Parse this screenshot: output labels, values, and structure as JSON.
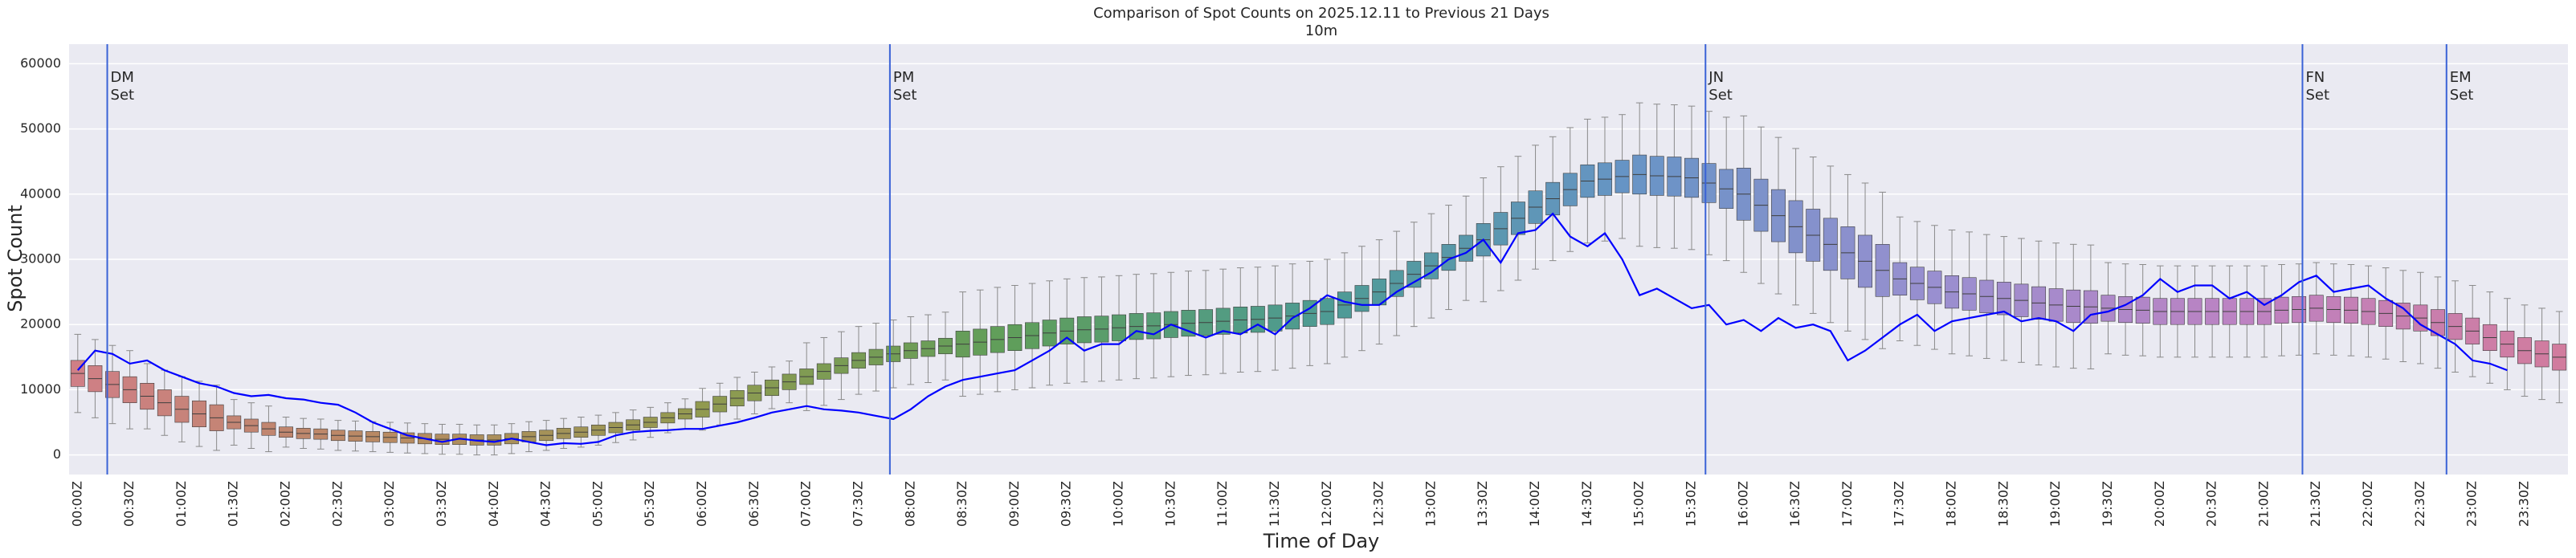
{
  "chart_data": {
    "type": "boxplot",
    "title": "Comparison of Spot Counts on 2025.12.11 to Previous 21 Days",
    "subtitle": "10m",
    "x_label": "Time of Day",
    "y_label": "Spot Count",
    "categories": [
      "00:00Z",
      null,
      null,
      "00:30Z",
      null,
      null,
      "01:00Z",
      null,
      null,
      "01:30Z",
      null,
      null,
      "02:00Z",
      null,
      null,
      "02:30Z",
      null,
      null,
      "03:00Z",
      null,
      null,
      "03:30Z",
      null,
      null,
      "04:00Z",
      null,
      null,
      "04:30Z",
      null,
      null,
      "05:00Z",
      null,
      null,
      "05:30Z",
      null,
      null,
      "06:00Z",
      null,
      null,
      "06:30Z",
      null,
      null,
      "07:00Z",
      null,
      null,
      "07:30Z",
      null,
      null,
      "08:00Z",
      null,
      null,
      "08:30Z",
      null,
      null,
      "09:00Z",
      null,
      null,
      "09:30Z",
      null,
      null,
      "10:00Z",
      null,
      null,
      "10:30Z",
      null,
      null,
      "11:00Z",
      null,
      null,
      "11:30Z",
      null,
      null,
      "12:00Z",
      null,
      null,
      "12:30Z",
      null,
      null,
      "13:00Z",
      null,
      null,
      "13:30Z",
      null,
      null,
      "14:00Z",
      null,
      null,
      "14:30Z",
      null,
      null,
      "15:00Z",
      null,
      null,
      "15:30Z",
      null,
      null,
      "16:00Z",
      null,
      null,
      "16:30Z",
      null,
      null,
      "17:00Z",
      null,
      null,
      "17:30Z",
      null,
      null,
      "18:00Z",
      null,
      null,
      "18:30Z",
      null,
      null,
      "19:00Z",
      null,
      null,
      "19:30Z",
      null,
      null,
      "20:00Z",
      null,
      null,
      "20:30Z",
      null,
      null,
      "21:00Z",
      null,
      null,
      "21:30Z",
      null,
      null,
      "22:00Z",
      null,
      null,
      "22:30Z",
      null,
      null,
      "23:00Z",
      null,
      null,
      "23:30Z",
      null,
      null
    ],
    "boxes": {
      "palette": [
        "#cf7f86",
        "#b88a62",
        "#929a50",
        "#5f9e5a",
        "#4d9b93",
        "#6794c6",
        "#9a8fd0",
        "#bd82c2",
        "#d17c9e"
      ],
      "edge_color": "#3f3f3f",
      "q1": [
        10500,
        9700,
        8800,
        8000,
        7000,
        6000,
        5000,
        4300,
        3700,
        4000,
        3500,
        3000,
        2700,
        2500,
        2400,
        2200,
        2100,
        2000,
        1900,
        1800,
        1700,
        1600,
        1600,
        1500,
        1500,
        1700,
        2000,
        2200,
        2500,
        2700,
        3000,
        3400,
        3800,
        4200,
        4900,
        5500,
        5800,
        6600,
        7500,
        8300,
        9100,
        10000,
        10800,
        11600,
        12500,
        13300,
        13800,
        14300,
        14800,
        15100,
        15500,
        15000,
        15300,
        15700,
        16000,
        16300,
        16700,
        17000,
        17200,
        17300,
        17500,
        17700,
        17800,
        18000,
        18200,
        18300,
        18500,
        18700,
        18800,
        19000,
        19300,
        19700,
        20000,
        21000,
        22000,
        23000,
        24300,
        25700,
        27000,
        28300,
        29700,
        30500,
        32200,
        33800,
        35500,
        36800,
        38200,
        39500,
        39800,
        40200,
        40000,
        39800,
        39700,
        39500,
        38700,
        37800,
        36000,
        34300,
        32700,
        31000,
        29700,
        28300,
        27000,
        25700,
        24300,
        24500,
        23800,
        23200,
        22500,
        22200,
        21800,
        21500,
        21200,
        20800,
        20500,
        20300,
        20200,
        20500,
        20300,
        20200,
        20000,
        20000,
        20000,
        20000,
        20000,
        20000,
        20000,
        20200,
        20300,
        20500,
        20300,
        20200,
        20000,
        19700,
        19300,
        19000,
        18300,
        17700,
        17000,
        16000,
        15000,
        14000,
        13500,
        13000
      ],
      "median": [
        12500,
        11700,
        10800,
        10000,
        9000,
        8000,
        7000,
        6300,
        5700,
        5000,
        4500,
        4000,
        3500,
        3300,
        3200,
        3000,
        2900,
        2800,
        2700,
        2600,
        2500,
        2400,
        2400,
        2300,
        2300,
        2500,
        2800,
        3000,
        3300,
        3500,
        3800,
        4200,
        4600,
        5000,
        5700,
        6300,
        7000,
        7800,
        8700,
        9500,
        10300,
        11200,
        12000,
        12800,
        13700,
        14500,
        15000,
        15500,
        16000,
        16300,
        16700,
        17000,
        17300,
        17700,
        18000,
        18300,
        18700,
        19000,
        19200,
        19300,
        19500,
        19700,
        19800,
        20000,
        20200,
        20300,
        20500,
        20700,
        20800,
        21000,
        21300,
        21700,
        22000,
        23000,
        24000,
        25000,
        26300,
        27700,
        29000,
        30300,
        31700,
        33000,
        34700,
        36300,
        38000,
        39300,
        40700,
        42000,
        42300,
        42700,
        43000,
        42800,
        42700,
        42500,
        41700,
        40800,
        40000,
        38300,
        36700,
        35000,
        33700,
        32300,
        31000,
        29700,
        28300,
        27000,
        26300,
        25700,
        25000,
        24700,
        24300,
        24000,
        23700,
        23300,
        23000,
        22800,
        22700,
        22500,
        22300,
        22200,
        22000,
        22000,
        22000,
        22000,
        22000,
        22000,
        22000,
        22200,
        22300,
        22500,
        22300,
        22200,
        22000,
        21700,
        21300,
        21000,
        20300,
        19700,
        19000,
        18000,
        17000,
        16000,
        15500,
        15000
      ],
      "q3": [
        14500,
        13700,
        12800,
        12000,
        11000,
        10000,
        9000,
        8300,
        7700,
        6000,
        5500,
        5000,
        4300,
        4100,
        4000,
        3800,
        3700,
        3600,
        3500,
        3400,
        3300,
        3200,
        3200,
        3100,
        3100,
        3300,
        3600,
        3800,
        4100,
        4300,
        4600,
        5000,
        5400,
        5800,
        6500,
        7100,
        8200,
        9000,
        9900,
        10700,
        11500,
        12400,
        13200,
        14000,
        14900,
        15700,
        16200,
        16700,
        17200,
        17500,
        17900,
        19000,
        19300,
        19700,
        20000,
        20300,
        20700,
        21000,
        21200,
        21300,
        21500,
        21700,
        21800,
        22000,
        22200,
        22300,
        22500,
        22700,
        22800,
        23000,
        23300,
        23700,
        24000,
        25000,
        26000,
        27000,
        28300,
        29700,
        31000,
        32300,
        33700,
        35500,
        37200,
        38800,
        40500,
        41800,
        43200,
        44500,
        44800,
        45200,
        46000,
        45800,
        45700,
        45500,
        44700,
        43800,
        44000,
        42300,
        40700,
        39000,
        37700,
        36300,
        35000,
        33700,
        32300,
        29500,
        28800,
        28200,
        27500,
        27200,
        26800,
        26500,
        26200,
        25800,
        25500,
        25300,
        25200,
        24500,
        24300,
        24200,
        24000,
        24000,
        24000,
        24000,
        24000,
        24000,
        24000,
        24200,
        24300,
        24500,
        24300,
        24200,
        24000,
        23700,
        23300,
        23000,
        22300,
        21700,
        21000,
        20000,
        19000,
        18000,
        17500,
        17000
      ],
      "low": [
        6500,
        5700,
        4800,
        4000,
        4000,
        3000,
        2000,
        1300,
        700,
        1500,
        1000,
        500,
        1200,
        1000,
        900,
        700,
        600,
        500,
        400,
        300,
        200,
        100,
        100,
        0,
        0,
        200,
        500,
        700,
        1000,
        1200,
        1500,
        1900,
        2300,
        2700,
        3400,
        4000,
        3800,
        4600,
        5500,
        6300,
        7100,
        8000,
        6800,
        7600,
        8500,
        9300,
        9800,
        10300,
        10800,
        11100,
        11500,
        9000,
        9300,
        9700,
        10000,
        10300,
        10700,
        11000,
        11200,
        11300,
        11500,
        11700,
        11800,
        12000,
        12200,
        12300,
        12500,
        12700,
        12800,
        13000,
        13300,
        13700,
        14000,
        15000,
        16000,
        17000,
        18300,
        19700,
        21000,
        22300,
        23700,
        23500,
        25200,
        26800,
        28500,
        29800,
        31200,
        32500,
        32800,
        33200,
        32000,
        31800,
        31700,
        31500,
        30700,
        29800,
        28000,
        26300,
        24700,
        23000,
        21700,
        20300,
        19000,
        17700,
        16300,
        17500,
        16800,
        16200,
        15500,
        15200,
        14800,
        14500,
        14200,
        13800,
        13500,
        13300,
        13200,
        15500,
        15300,
        15200,
        15000,
        15000,
        15000,
        15000,
        15000,
        15000,
        15000,
        15200,
        15300,
        15500,
        15300,
        15200,
        15000,
        14700,
        14300,
        14000,
        13300,
        12700,
        12000,
        11000,
        10000,
        9000,
        8500,
        8000
      ],
      "high": [
        18500,
        17700,
        16800,
        16000,
        14000,
        13000,
        12000,
        11300,
        10700,
        8500,
        8000,
        7500,
        5800,
        5600,
        5500,
        5300,
        5200,
        5100,
        5000,
        4900,
        4800,
        4700,
        4700,
        4600,
        4600,
        4800,
        5100,
        5300,
        5600,
        5800,
        6100,
        6500,
        6900,
        7300,
        8000,
        8600,
        10200,
        11000,
        11900,
        12700,
        13500,
        14400,
        17200,
        18000,
        18900,
        19700,
        20200,
        20700,
        21200,
        21500,
        21900,
        25000,
        25300,
        25700,
        26000,
        26300,
        26700,
        27000,
        27200,
        27300,
        27500,
        27700,
        27800,
        28000,
        28200,
        28300,
        28500,
        28700,
        28800,
        29000,
        29300,
        29700,
        30000,
        31000,
        32000,
        33000,
        34300,
        35700,
        37000,
        38300,
        39700,
        42500,
        44200,
        45800,
        47500,
        48800,
        50200,
        51500,
        51800,
        52200,
        54000,
        53800,
        53700,
        53500,
        52700,
        51800,
        52000,
        50300,
        48700,
        47000,
        45700,
        44300,
        43000,
        41700,
        40300,
        36500,
        35800,
        35200,
        34500,
        34200,
        33800,
        33500,
        33200,
        32800,
        32500,
        32300,
        32200,
        29500,
        29300,
        29200,
        29000,
        29000,
        29000,
        29000,
        29000,
        29000,
        29000,
        29200,
        29300,
        29500,
        29300,
        29200,
        29000,
        28700,
        28300,
        28000,
        27300,
        26700,
        26000,
        25000,
        24000,
        23000,
        22500,
        22000
      ]
    },
    "line": {
      "color": "#0000ff",
      "values": [
        13000,
        16000,
        15500,
        14000,
        14500,
        13000,
        12000,
        11000,
        10500,
        9500,
        9000,
        9200,
        8700,
        8500,
        8000,
        7700,
        6500,
        5000,
        4000,
        3000,
        2500,
        2000,
        2500,
        2200,
        2000,
        2500,
        2000,
        1500,
        1800,
        1700,
        2000,
        3000,
        3500,
        3700,
        3800,
        4000,
        4000,
        4500,
        5000,
        5700,
        6500,
        7000,
        7500,
        7000,
        6800,
        6500,
        6000,
        5500,
        7000,
        9000,
        10500,
        11500,
        12000,
        12500,
        13000,
        14500,
        16000,
        18000,
        16000,
        17000,
        17000,
        19000,
        18500,
        20000,
        19000,
        18000,
        19000,
        18500,
        20000,
        18500,
        21000,
        22500,
        24500,
        23500,
        23000,
        23000,
        25000,
        26500,
        28000,
        30000,
        31000,
        33000,
        29500,
        34000,
        34500,
        37000,
        33500,
        32000,
        34000,
        30000,
        24500,
        25500,
        24000,
        22500,
        23000,
        20000,
        20700,
        19000,
        21000,
        19500,
        20000,
        19000,
        14500,
        16000,
        18000,
        20000,
        21500,
        19000,
        20500,
        21000,
        21500,
        22000,
        20500,
        21000,
        20500,
        19000,
        21500,
        22000,
        23000,
        24500,
        27000,
        25000,
        26000,
        26000,
        24000,
        25000,
        23000,
        24500,
        26500,
        27500,
        25000,
        25500,
        26000,
        24000,
        22500,
        20000,
        18500,
        17000,
        14500,
        14000,
        13000
      ]
    },
    "events": {
      "color": "#3a62d6",
      "items": [
        {
          "at": 1.7,
          "text": [
            "DM",
            "Set"
          ]
        },
        {
          "at": 46.8,
          "text": [
            "PM",
            "Set"
          ]
        },
        {
          "at": 93.8,
          "text": [
            "JN",
            "Set"
          ]
        },
        {
          "at": 128.2,
          "text": [
            "FN",
            "Set"
          ]
        },
        {
          "at": 136.5,
          "text": [
            "EM",
            "Set"
          ]
        }
      ]
    },
    "ylim": [
      -3000,
      63000
    ],
    "yticks": [
      0,
      10000,
      20000,
      30000,
      40000,
      50000,
      60000
    ],
    "grid": "y",
    "background": "#eaeaf2"
  }
}
